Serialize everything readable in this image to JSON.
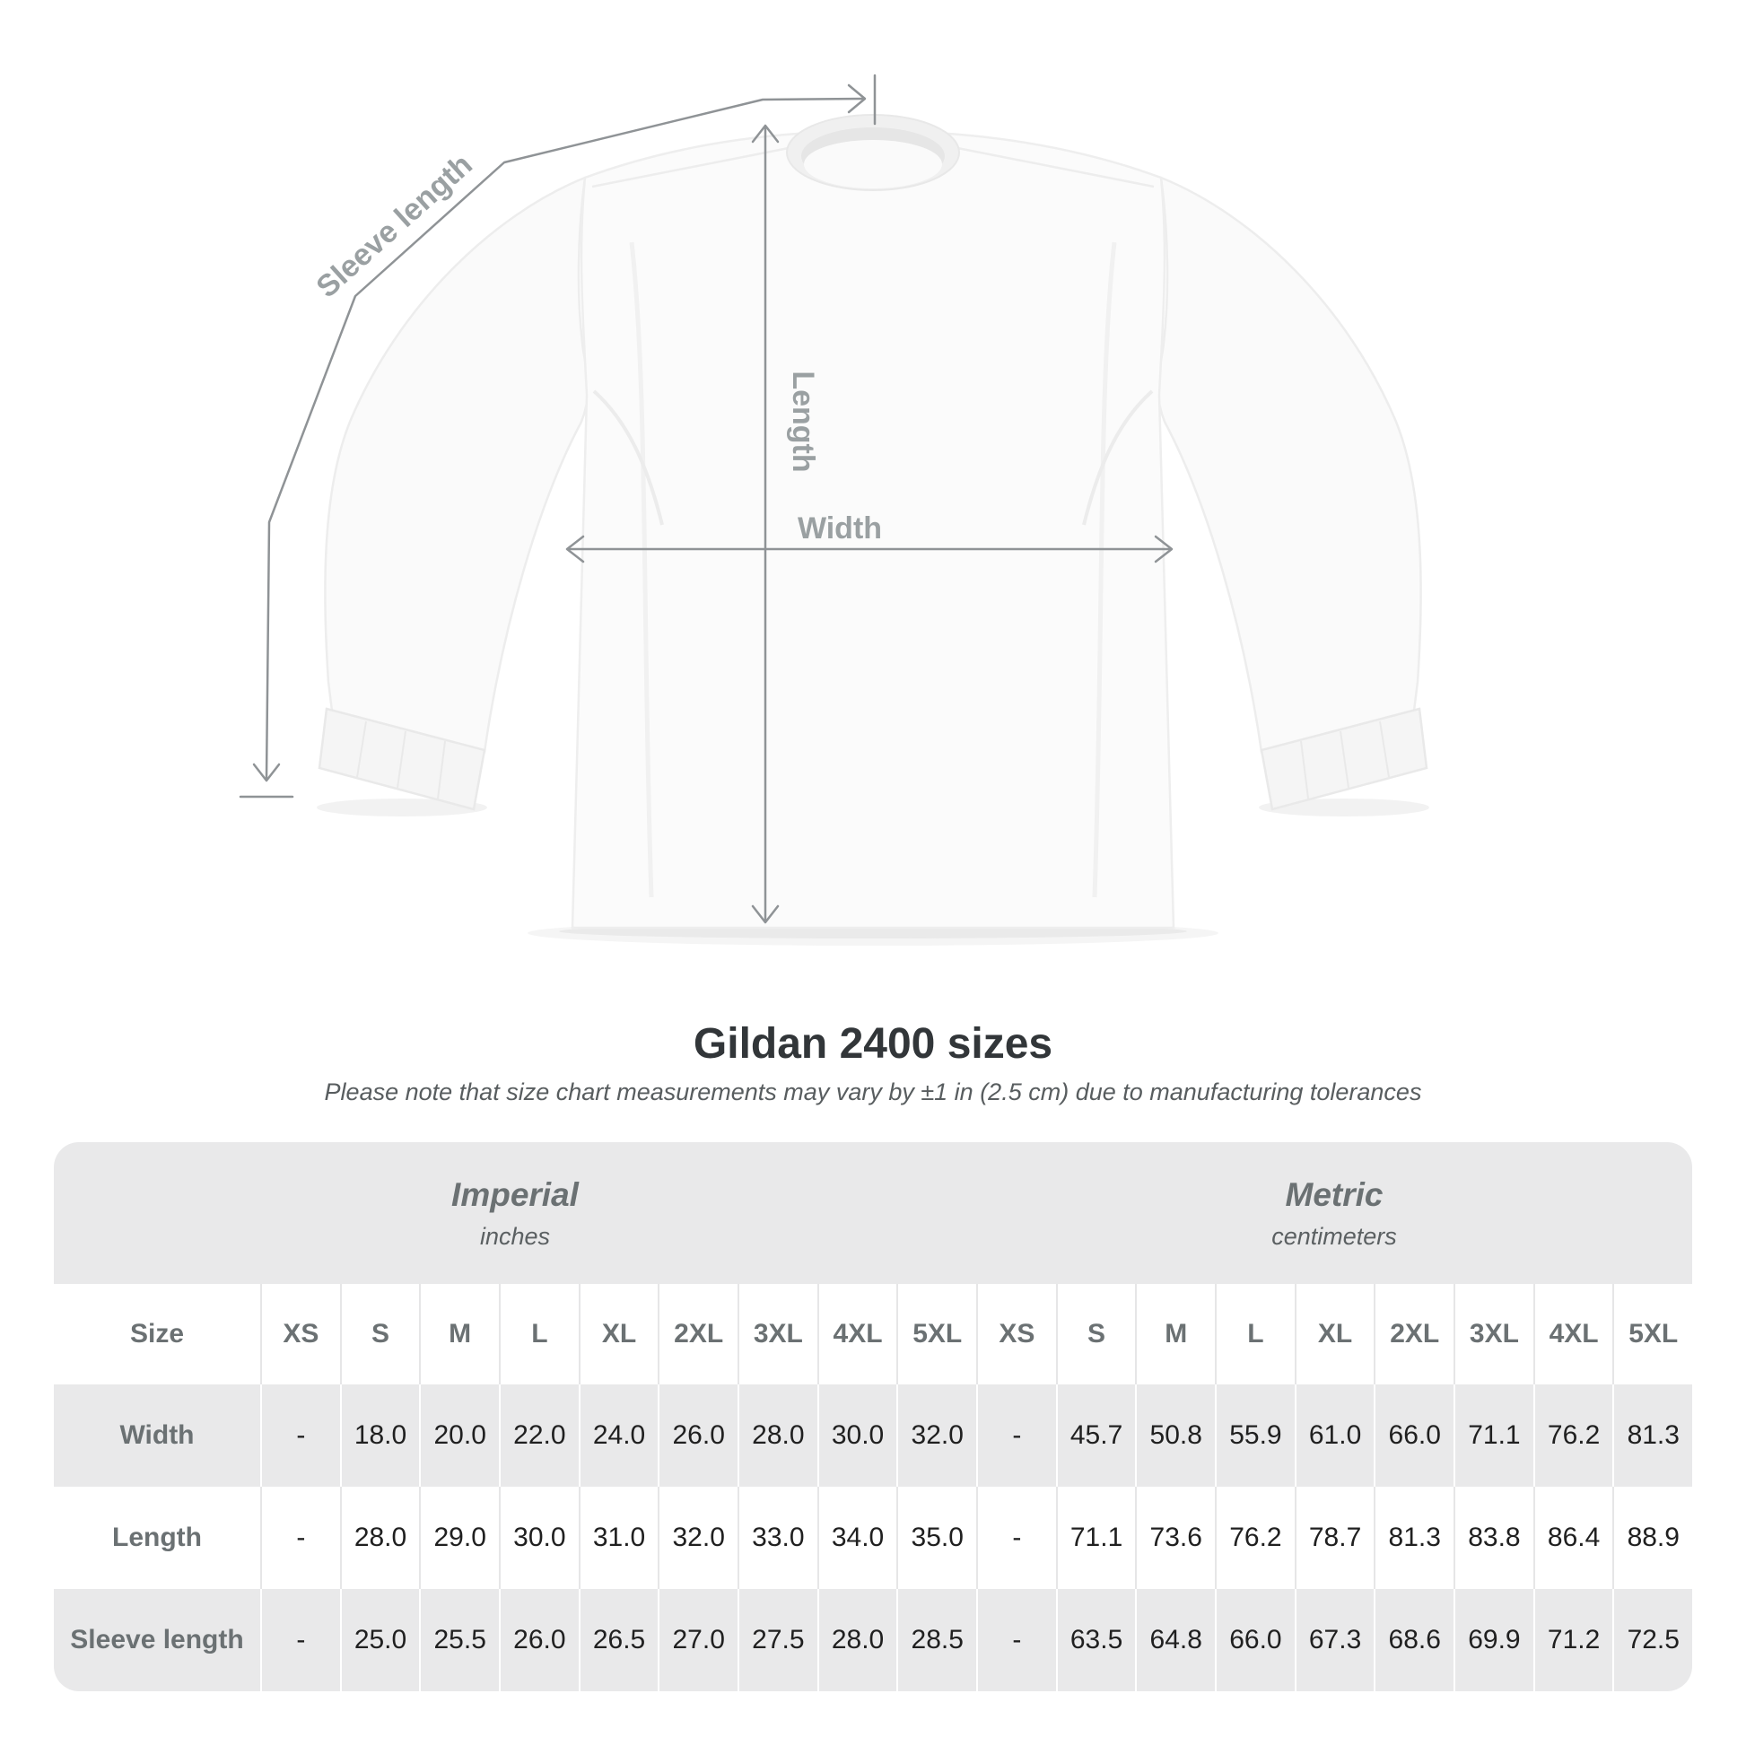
{
  "diagram": {
    "sleeve_length_label": "Sleeve length",
    "length_label": "Length",
    "width_label": "Width"
  },
  "chart_data": {
    "type": "table",
    "title": "Gildan 2400 sizes",
    "note": "Please note that size chart measurements may vary by ±1 in (2.5 cm) due to manufacturing tolerances",
    "corner_label": "Size",
    "groups": [
      {
        "label": "Imperial",
        "unit": "inches"
      },
      {
        "label": "Metric",
        "unit": "centimeters"
      }
    ],
    "sizes": [
      "XS",
      "S",
      "M",
      "L",
      "XL",
      "2XL",
      "3XL",
      "4XL",
      "5XL"
    ],
    "rows": [
      {
        "label": "Width",
        "imperial": [
          "-",
          "18.0",
          "20.0",
          "22.0",
          "24.0",
          "26.0",
          "28.0",
          "30.0",
          "32.0"
        ],
        "metric": [
          "-",
          "45.7",
          "50.8",
          "55.9",
          "61.0",
          "66.0",
          "71.1",
          "76.2",
          "81.3"
        ]
      },
      {
        "label": "Length",
        "imperial": [
          "-",
          "28.0",
          "29.0",
          "30.0",
          "31.0",
          "32.0",
          "33.0",
          "34.0",
          "35.0"
        ],
        "metric": [
          "-",
          "71.1",
          "73.6",
          "76.2",
          "78.7",
          "81.3",
          "83.8",
          "86.4",
          "88.9"
        ]
      },
      {
        "label": "Sleeve length",
        "imperial": [
          "-",
          "25.0",
          "25.5",
          "26.0",
          "26.5",
          "27.0",
          "27.5",
          "28.0",
          "28.5"
        ],
        "metric": [
          "-",
          "63.5",
          "64.8",
          "66.0",
          "67.3",
          "68.6",
          "69.9",
          "71.2",
          "72.5"
        ]
      }
    ]
  },
  "colors": {
    "row_band": "#e9e9ea",
    "label_gray": "#6b7173",
    "value_dark": "#202020",
    "diagram_line": "#8f9396",
    "diagram_label": "#9aa0a2"
  }
}
